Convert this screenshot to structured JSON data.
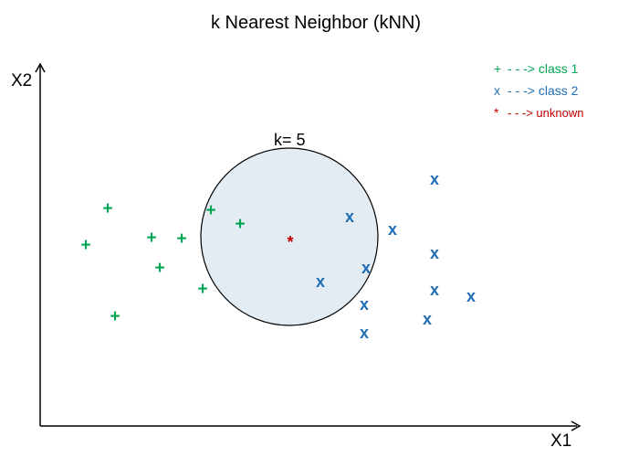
{
  "title": "k Nearest Neighbor (kNN)",
  "axes": {
    "x_label": "X1",
    "y_label": "X2"
  },
  "neighborhood": {
    "label": "k= 5"
  },
  "legend": [
    {
      "symbol": "+",
      "text": "- - -> class 1",
      "color": "#00a651"
    },
    {
      "symbol": "x",
      "text": "- - -> class 2",
      "color": "#1f6fb5"
    },
    {
      "symbol": "*",
      "text": "- - -> unknown",
      "color": "#c00000"
    }
  ],
  "points": {
    "class1": {
      "symbol": "+",
      "color": "#00a651"
    },
    "class2": {
      "symbol": "x",
      "color": "#1f6fb5"
    },
    "unknown": {
      "symbol": "*",
      "color": "#c00000"
    }
  },
  "colors": {
    "circle_fill": "#e3ebf3",
    "circle_stroke": "#000000",
    "axis": "#000000"
  }
}
